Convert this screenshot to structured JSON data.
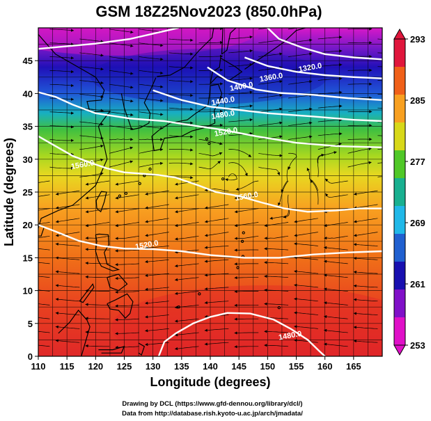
{
  "title": "GSM 18Z25Nov2023 (850.0hPa)",
  "xlabel": "Longitude (degrees)",
  "ylabel": "Latitude  (degrees)",
  "x_ticks": [
    "110",
    "115",
    "120",
    "125",
    "130",
    "135",
    "140",
    "145",
    "150",
    "155",
    "160",
    "165"
  ],
  "y_ticks": [
    "0",
    "5",
    "10",
    "15",
    "20",
    "25",
    "30",
    "35",
    "40",
    "45"
  ],
  "colorbar": {
    "labels": [
      "293",
      "285",
      "277",
      "269",
      "261",
      "253"
    ],
    "colors": [
      "#e0163c",
      "#f06018",
      "#f8a020",
      "#d8d818",
      "#50c828",
      "#18b090",
      "#20b8e8",
      "#2060d0",
      "#1810b0",
      "#8010c8",
      "#e010c8"
    ]
  },
  "contour_labels": [
    {
      "text": "1320.0",
      "lon": 157.5,
      "lat": 43.6
    },
    {
      "text": "1360.0",
      "lon": 150.7,
      "lat": 42.1
    },
    {
      "text": "1400.0",
      "lon": 145.5,
      "lat": 40.7
    },
    {
      "text": "1440.0",
      "lon": 142.3,
      "lat": 38.5
    },
    {
      "text": "1480.0",
      "lon": 142.3,
      "lat": 36.4
    },
    {
      "text": "1520.0",
      "lon": 142.8,
      "lat": 33.8
    },
    {
      "text": "1560.0",
      "lon": 117.8,
      "lat": 28.8
    },
    {
      "text": "1520.0",
      "lon": 129.0,
      "lat": 16.6
    },
    {
      "text": "1560.0",
      "lon": 146.4,
      "lat": 24.0
    },
    {
      "text": "1480.0",
      "lon": 154.0,
      "lat": 2.8
    }
  ],
  "credits": [
    "Drawing by DCL (https://www.gfd-dennou.org/library/dcl/)",
    "Data from http://database.rish.kyoto-u.ac.jp/arch/jmadata/"
  ]
}
